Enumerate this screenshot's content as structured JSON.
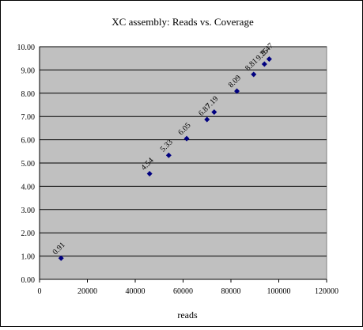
{
  "chart_data": {
    "type": "scatter",
    "title": "XC assembly: Reads vs. Coverage",
    "xlabel": "reads",
    "ylabel": "",
    "xlim": [
      0,
      120000
    ],
    "ylim": [
      0,
      10
    ],
    "x_ticks": [
      "0",
      "20000",
      "40000",
      "60000",
      "80000",
      "100000",
      "120000"
    ],
    "y_ticks": [
      "0.00",
      "1.00",
      "2.00",
      "3.00",
      "4.00",
      "5.00",
      "6.00",
      "7.00",
      "8.00",
      "9.00",
      "10.00"
    ],
    "grid": "horizontal",
    "legend": "none",
    "series": [
      {
        "marker": "diamond",
        "color": "#000080",
        "points": [
          {
            "x": 9000,
            "y": 0.91,
            "label": "0.91"
          },
          {
            "x": 46000,
            "y": 4.54,
            "label": "4.54"
          },
          {
            "x": 54000,
            "y": 5.33,
            "label": "5.33"
          },
          {
            "x": 61500,
            "y": 6.05,
            "label": "6.05"
          },
          {
            "x": 70000,
            "y": 6.87,
            "label": "6.87"
          },
          {
            "x": 73000,
            "y": 7.19,
            "label": "7.19"
          },
          {
            "x": 82500,
            "y": 8.09,
            "label": "8.09"
          },
          {
            "x": 89500,
            "y": 8.81,
            "label": "8.81"
          },
          {
            "x": 94000,
            "y": 9.25,
            "label": "9.25"
          },
          {
            "x": 96000,
            "y": 9.47,
            "label": "9.47"
          }
        ]
      }
    ],
    "colors": {
      "plot_background": "#c0c0c0",
      "gridline": "#000000",
      "marker": "#000080"
    }
  }
}
